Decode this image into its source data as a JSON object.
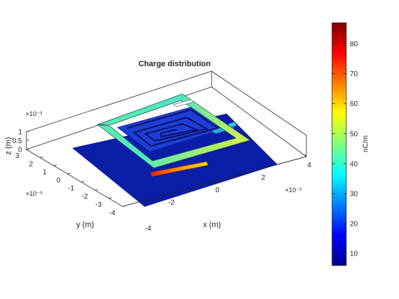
{
  "chart_data": {
    "type": "heatmap",
    "title": "Charge distribution",
    "xlabel": "x (m)",
    "ylabel": "y (m)",
    "zlabel": "z (m)",
    "x_exponent": "×10⁻³",
    "y_exponent": "×10⁻³",
    "z_exponent": "×10⁻³",
    "xlim": [
      -4,
      4
    ],
    "ylim": [
      -4,
      3
    ],
    "zlim": [
      0,
      1
    ],
    "x_ticks": [
      "-2",
      "0",
      "2",
      "4"
    ],
    "y_ticks": [
      "3",
      "2",
      "1",
      "0",
      "-1",
      "-2",
      "-3",
      "-4"
    ],
    "z_ticks": [
      "1",
      "0.5",
      "0"
    ],
    "colorbar": {
      "label": "nC/m",
      "colormap": "jet",
      "range": [
        6,
        87
      ],
      "ticks": [
        "80",
        "70",
        "60",
        "50",
        "40",
        "30",
        "20",
        "10"
      ]
    },
    "grid": false,
    "view": "3-D perspective",
    "structures": [
      {
        "name": "ground plane",
        "charge_nC_per_m": 10
      },
      {
        "name": "spiral inductor",
        "charge_nC_per_m": 12
      },
      {
        "name": "outer square loop",
        "charge_nC_per_m": 40
      },
      {
        "name": "feed line",
        "charge_nC_per_m": 80
      }
    ]
  }
}
